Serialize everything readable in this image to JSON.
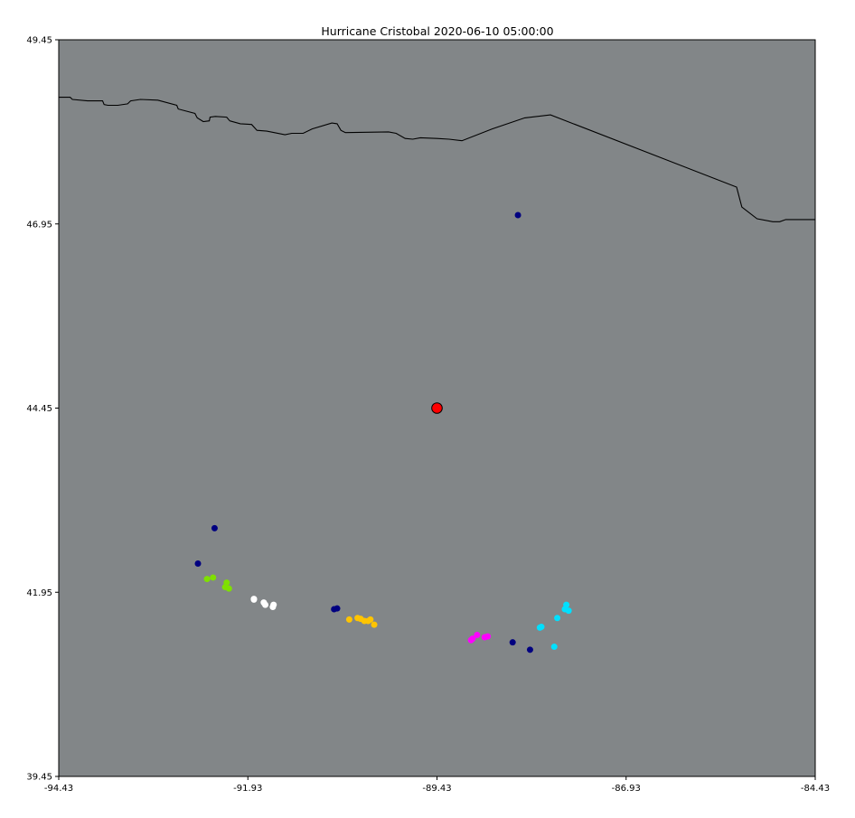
{
  "title": "Hurricane Cristobal 2020-06-10 05:00:00",
  "chart_data": {
    "type": "scatter",
    "title": "Hurricane Cristobal 2020-06-10 05:00:00",
    "xlim": [
      -94.43,
      -84.43
    ],
    "ylim": [
      39.45,
      49.45
    ],
    "x_ticks": [
      "-94.43",
      "-91.93",
      "-89.43",
      "-86.93",
      "-84.43"
    ],
    "y_ticks": [
      "49.45",
      "46.95",
      "44.45",
      "41.95",
      "39.45"
    ],
    "background": "#828688",
    "grid": false,
    "center": {
      "lon": -89.43,
      "lat": 44.45,
      "color": "#ff0000"
    },
    "coastline": [
      [
        -94.43,
        48.67
      ],
      [
        -94.28,
        48.67
      ],
      [
        -94.25,
        48.64
      ],
      [
        -94.05,
        48.62
      ],
      [
        -93.85,
        48.62
      ],
      [
        -93.83,
        48.57
      ],
      [
        -93.78,
        48.56
      ],
      [
        -93.65,
        48.56
      ],
      [
        -93.52,
        48.58
      ],
      [
        -93.48,
        48.62
      ],
      [
        -93.35,
        48.64
      ],
      [
        -93.12,
        48.63
      ],
      [
        -92.87,
        48.56
      ],
      [
        -92.85,
        48.51
      ],
      [
        -92.63,
        48.45
      ],
      [
        -92.6,
        48.39
      ],
      [
        -92.52,
        48.34
      ],
      [
        -92.44,
        48.35
      ],
      [
        -92.43,
        48.4
      ],
      [
        -92.36,
        48.41
      ],
      [
        -92.21,
        48.4
      ],
      [
        -92.17,
        48.35
      ],
      [
        -92.03,
        48.31
      ],
      [
        -91.88,
        48.3
      ],
      [
        -91.81,
        48.22
      ],
      [
        -91.68,
        48.21
      ],
      [
        -91.44,
        48.16
      ],
      [
        -91.35,
        48.18
      ],
      [
        -91.2,
        48.18
      ],
      [
        -91.08,
        48.24
      ],
      [
        -90.82,
        48.32
      ],
      [
        -90.75,
        48.31
      ],
      [
        -90.7,
        48.22
      ],
      [
        -90.64,
        48.19
      ],
      [
        -90.07,
        48.2
      ],
      [
        -89.97,
        48.18
      ],
      [
        -89.85,
        48.11
      ],
      [
        -89.75,
        48.1
      ],
      [
        -89.65,
        48.12
      ],
      [
        -89.43,
        48.11
      ],
      [
        -89.27,
        48.1
      ],
      [
        -89.1,
        48.08
      ],
      [
        -88.7,
        48.24
      ],
      [
        -88.7,
        48.24
      ],
      [
        -88.27,
        48.39
      ],
      [
        -87.93,
        48.43
      ],
      [
        -85.47,
        47.45
      ],
      [
        -85.4,
        47.18
      ],
      [
        -85.2,
        47.02
      ],
      [
        -84.99,
        46.98
      ],
      [
        -84.9,
        46.98
      ],
      [
        -84.82,
        47.01
      ],
      [
        -84.43,
        47.01
      ]
    ],
    "series": [
      {
        "color": "#000080",
        "points": [
          [
            -88.36,
            47.07
          ],
          [
            -92.37,
            42.82
          ],
          [
            -92.59,
            42.34
          ],
          [
            -90.75,
            41.73
          ],
          [
            -90.79,
            41.72
          ],
          [
            -88.43,
            41.27
          ],
          [
            -88.2,
            41.17
          ]
        ]
      },
      {
        "color": "#7fe000",
        "points": [
          [
            -92.47,
            42.13
          ],
          [
            -92.39,
            42.15
          ],
          [
            -92.21,
            42.08
          ],
          [
            -92.23,
            42.02
          ],
          [
            -92.18,
            42.0
          ]
        ]
      },
      {
        "color": "#ffffff",
        "points": [
          [
            -91.85,
            41.86
          ],
          [
            -91.85,
            41.85
          ],
          [
            -91.7,
            41.78
          ],
          [
            -91.72,
            41.81
          ],
          [
            -91.59,
            41.78
          ],
          [
            -91.6,
            41.75
          ]
        ]
      },
      {
        "color": "#ffc400",
        "points": [
          [
            -90.59,
            41.58
          ],
          [
            -90.48,
            41.6
          ],
          [
            -90.44,
            41.59
          ],
          [
            -90.39,
            41.56
          ],
          [
            -90.34,
            41.56
          ],
          [
            -90.31,
            41.58
          ],
          [
            -90.26,
            41.51
          ]
        ]
      },
      {
        "color": "#ff00ff",
        "points": [
          [
            -88.98,
            41.3
          ],
          [
            -88.9,
            41.37
          ],
          [
            -88.8,
            41.34
          ],
          [
            -88.76,
            41.35
          ],
          [
            -88.96,
            41.32
          ]
        ]
      },
      {
        "color": "#00e0ff",
        "points": [
          [
            -87.69,
            41.7
          ],
          [
            -87.72,
            41.78
          ],
          [
            -87.74,
            41.72
          ],
          [
            -87.84,
            41.6
          ],
          [
            -88.05,
            41.48
          ],
          [
            -88.07,
            41.47
          ],
          [
            -87.88,
            41.21
          ]
        ]
      }
    ]
  }
}
